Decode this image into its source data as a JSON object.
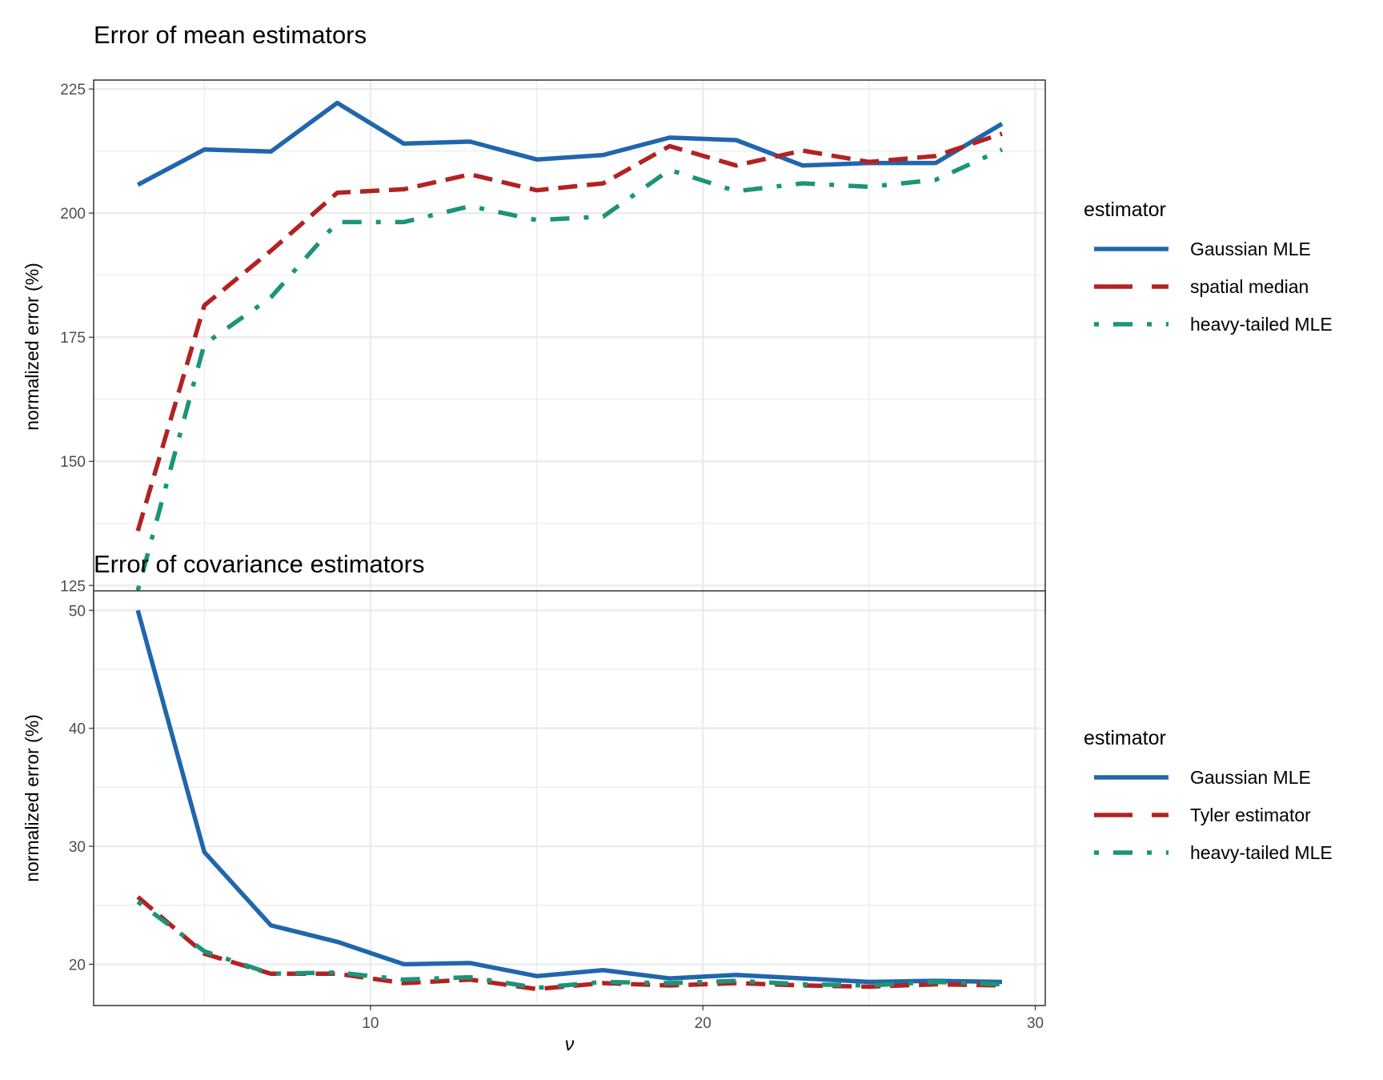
{
  "chart_data": [
    {
      "type": "line",
      "title": "Error of mean estimators",
      "xlabel": "ν",
      "ylabel": "normalized error (%)",
      "x": [
        3,
        5,
        7,
        9,
        11,
        13,
        15,
        17,
        19,
        21,
        23,
        25,
        27,
        29
      ],
      "xlim": [
        1.67,
        30.3
      ],
      "ylim": [
        119.4,
        226.8
      ],
      "xticks": [
        10,
        20,
        30
      ],
      "yticks": [
        125,
        150,
        175,
        200,
        225
      ],
      "grid": true,
      "legend_title": "estimator",
      "legend_position": "right",
      "series": [
        {
          "name": "Gaussian MLE",
          "color": "#2166AC",
          "linetype": "solid",
          "values": [
            205.7,
            212.8,
            212.4,
            222.2,
            214.0,
            214.4,
            210.8,
            211.7,
            215.2,
            214.7,
            209.6,
            210.1,
            210.1,
            218.0
          ]
        },
        {
          "name": "spatial median",
          "color": "#B22222",
          "linetype": "dashed",
          "values": [
            136.0,
            181.4,
            192.4,
            204.1,
            204.8,
            207.8,
            204.6,
            206.0,
            213.5,
            209.6,
            212.6,
            210.3,
            211.5,
            216.0
          ]
        },
        {
          "name": "heavy-tailed MLE",
          "color": "#1B9477",
          "linetype": "dotdash",
          "values": [
            124.0,
            173.6,
            183.0,
            198.2,
            198.2,
            201.4,
            198.6,
            199.3,
            208.7,
            204.4,
            206.0,
            205.3,
            206.7,
            212.8
          ]
        }
      ]
    },
    {
      "type": "line",
      "title": "Error of covariance estimators",
      "xlabel": "ν",
      "ylabel": "normalized error (%)",
      "x": [
        3,
        5,
        7,
        9,
        11,
        13,
        15,
        17,
        19,
        21,
        23,
        25,
        27,
        29
      ],
      "xlim": [
        1.67,
        30.3
      ],
      "ylim": [
        16.5,
        51.65
      ],
      "xticks": [
        10,
        20,
        30
      ],
      "yticks": [
        20,
        30,
        40,
        50
      ],
      "grid": true,
      "legend_title": "estimator",
      "legend_position": "right",
      "series": [
        {
          "name": "Gaussian MLE",
          "color": "#2166AC",
          "linetype": "solid",
          "values": [
            50.0,
            29.5,
            23.3,
            21.9,
            20.0,
            20.1,
            19.0,
            19.5,
            18.8,
            19.1,
            18.8,
            18.5,
            18.6,
            18.5
          ]
        },
        {
          "name": "Tyler estimator",
          "color": "#B22222",
          "linetype": "dashed",
          "values": [
            25.7,
            20.9,
            19.2,
            19.2,
            18.4,
            18.7,
            17.9,
            18.4,
            18.2,
            18.4,
            18.2,
            18.1,
            18.3,
            18.2
          ]
        },
        {
          "name": "heavy-tailed MLE",
          "color": "#1B9477",
          "linetype": "dotdash",
          "values": [
            25.3,
            21.1,
            19.2,
            19.3,
            18.7,
            18.9,
            18.0,
            18.5,
            18.4,
            18.6,
            18.3,
            18.2,
            18.5,
            18.3
          ]
        }
      ]
    }
  ]
}
